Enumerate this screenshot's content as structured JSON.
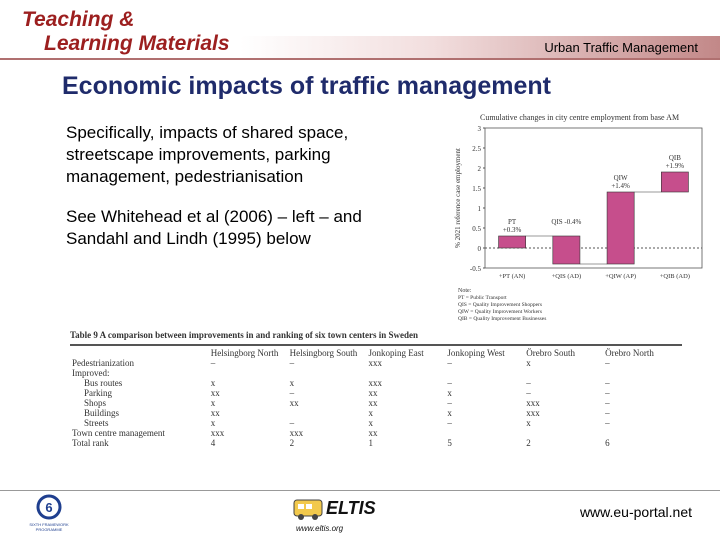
{
  "header": {
    "logo_line1": "Teaching &",
    "logo_line2": "Learning Materials",
    "topic": "Urban Traffic Management"
  },
  "slide": {
    "title": "Economic impacts of traffic management",
    "paragraph1": "Specifically, impacts of shared space, streetscape improvements, parking management, pedestrianisation",
    "paragraph2": "See Whitehead et al (2006) – left – and Sandahl and Lindh (1995) below"
  },
  "chart_data": {
    "type": "bar",
    "title": "Cumulative changes in city centre employment from base AM",
    "ylabel": "% 2021 reference case employment",
    "ylim": [
      -0.5,
      3
    ],
    "yticks": [
      "3",
      "2.5",
      "2",
      "1.5",
      "1",
      "0.5",
      "0",
      "-0.5"
    ],
    "categories": [
      "+PT (AN)",
      "+QIS (AD)",
      "+QIW (AP)",
      "+QIB (AD)"
    ],
    "values": [
      0.3,
      -0.4,
      1.4,
      1.9
    ],
    "annotations": [
      "PT\n+0.3%",
      "QIS -0.4%",
      "QIW\n+1.4%",
      "QIB\n+1.9%"
    ],
    "note_title": "Note:",
    "notes": [
      "PT = Public Transport",
      "QIS = Quality Improvement Shoppers",
      "QIW = Quality Improvement Workers",
      "QIB = Quality Improvement Businesses"
    ],
    "bar_color": "#c64e8c"
  },
  "table": {
    "caption": "Table 9  A comparison between improvements in and ranking of six town centers in Sweden",
    "columns": [
      "",
      "Helsingborg North",
      "Helsingborg South",
      "Jonkoping East",
      "Jonkoping West",
      "Örebro South",
      "Örebro North"
    ],
    "rows": [
      [
        "Pedestrianization",
        "–",
        "–",
        "xxx",
        "–",
        "x",
        "–"
      ],
      [
        "Improved:",
        "",
        "",
        "",
        "",
        "",
        ""
      ],
      [
        "Bus routes",
        "x",
        "x",
        "xxx",
        "–",
        "–",
        "–"
      ],
      [
        "Parking",
        "xx",
        "–",
        "xx",
        "x",
        "–",
        "–"
      ],
      [
        "Shops",
        "x",
        "xx",
        "xx",
        "–",
        "xxx",
        "–"
      ],
      [
        "Buildings",
        "xx",
        "",
        "x",
        "x",
        "xxx",
        "–"
      ],
      [
        "Streets",
        "x",
        "–",
        "x",
        "–",
        "x",
        "–"
      ],
      [
        "Town centre management",
        "xxx",
        "xxx",
        "xx",
        "",
        "",
        ""
      ],
      [
        "Total rank",
        "4",
        "2",
        "1",
        "5",
        "2",
        "6"
      ]
    ]
  },
  "footer": {
    "eu_caption": "SIXTH FRAMEWORK PROGRAMME",
    "eltis_label": "ELTIS",
    "eltis_url": "www.eltis.org",
    "url": "www.eu-portal.net"
  }
}
